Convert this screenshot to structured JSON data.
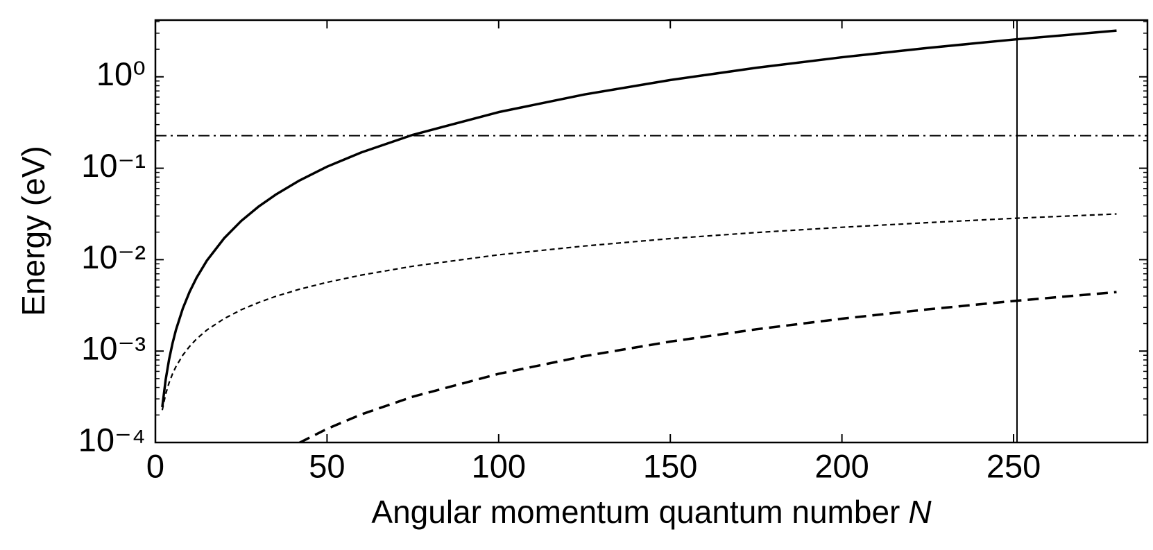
{
  "chart_data": {
    "type": "line",
    "xlabel": "Angular momentum quantum number",
    "xlabel_symbol": "N",
    "ylabel": "Energy (eV)",
    "yscale": "log",
    "xlim": [
      0,
      289
    ],
    "ylim": [
      0.0001,
      4.17
    ],
    "xticks": [
      0,
      50,
      100,
      150,
      200,
      250
    ],
    "yticks": [
      {
        "value": 0.0001,
        "label": "10⁻⁴"
      },
      {
        "value": 0.001,
        "label": "10⁻³"
      },
      {
        "value": 0.01,
        "label": "10⁻²"
      },
      {
        "value": 0.1,
        "label": "10⁻¹"
      },
      {
        "value": 1,
        "label": "10⁰"
      }
    ],
    "yminorticks": [
      0.0002,
      0.0003,
      0.0004,
      0.0005,
      0.0006,
      0.0007,
      0.0008,
      0.0009,
      0.002,
      0.003,
      0.004,
      0.005,
      0.006,
      0.007,
      0.008,
      0.009,
      0.02,
      0.03,
      0.04,
      0.05,
      0.06,
      0.07,
      0.08,
      0.09,
      0.2,
      0.3,
      0.4,
      0.5,
      0.6,
      0.7,
      0.8,
      0.9,
      2,
      3,
      4
    ],
    "x": [
      2,
      3,
      4,
      5,
      6,
      8,
      10,
      12,
      15,
      20,
      25,
      30,
      35,
      42,
      50,
      60,
      75,
      100,
      125,
      150,
      175,
      200,
      225,
      250,
      280
    ],
    "series": [
      {
        "color": "#000000",
        "linestyle": "solid",
        "values": [
          0.000244,
          0.000488,
          0.000814,
          0.00122,
          0.00171,
          0.00293,
          0.00448,
          0.00635,
          0.00977,
          0.0171,
          0.0265,
          0.0379,
          0.0513,
          0.0735,
          0.104,
          0.149,
          0.232,
          0.411,
          0.641,
          0.922,
          1.254,
          1.636,
          2.07,
          2.554,
          3.2
        ]
      },
      {
        "color": "#000000",
        "linestyle": "fine-dashed",
        "values": [
          0.000226,
          0.000339,
          0.000452,
          0.000565,
          0.000678,
          0.000904,
          0.00113,
          0.00136,
          0.0017,
          0.00226,
          0.00283,
          0.00339,
          0.00396,
          0.00475,
          0.00565,
          0.00678,
          0.00848,
          0.0113,
          0.0141,
          0.017,
          0.0198,
          0.0226,
          0.0254,
          0.0283,
          0.0316
        ]
      },
      {
        "color": "#000000",
        "linestyle": "dashed",
        "values": [
          null,
          null,
          null,
          null,
          null,
          null,
          null,
          null,
          null,
          null,
          null,
          null,
          null,
          9.95e-05,
          0.000141,
          0.000203,
          0.000317,
          0.000564,
          0.000881,
          0.00127,
          0.00173,
          0.00226,
          0.00286,
          0.00353,
          0.00442
        ]
      }
    ],
    "hlines": [
      {
        "value": 0.227,
        "color": "#000000",
        "linestyle": "dashdot"
      }
    ],
    "vlines": [
      {
        "value": 251,
        "color": "#000000",
        "linestyle": "solid"
      }
    ]
  }
}
